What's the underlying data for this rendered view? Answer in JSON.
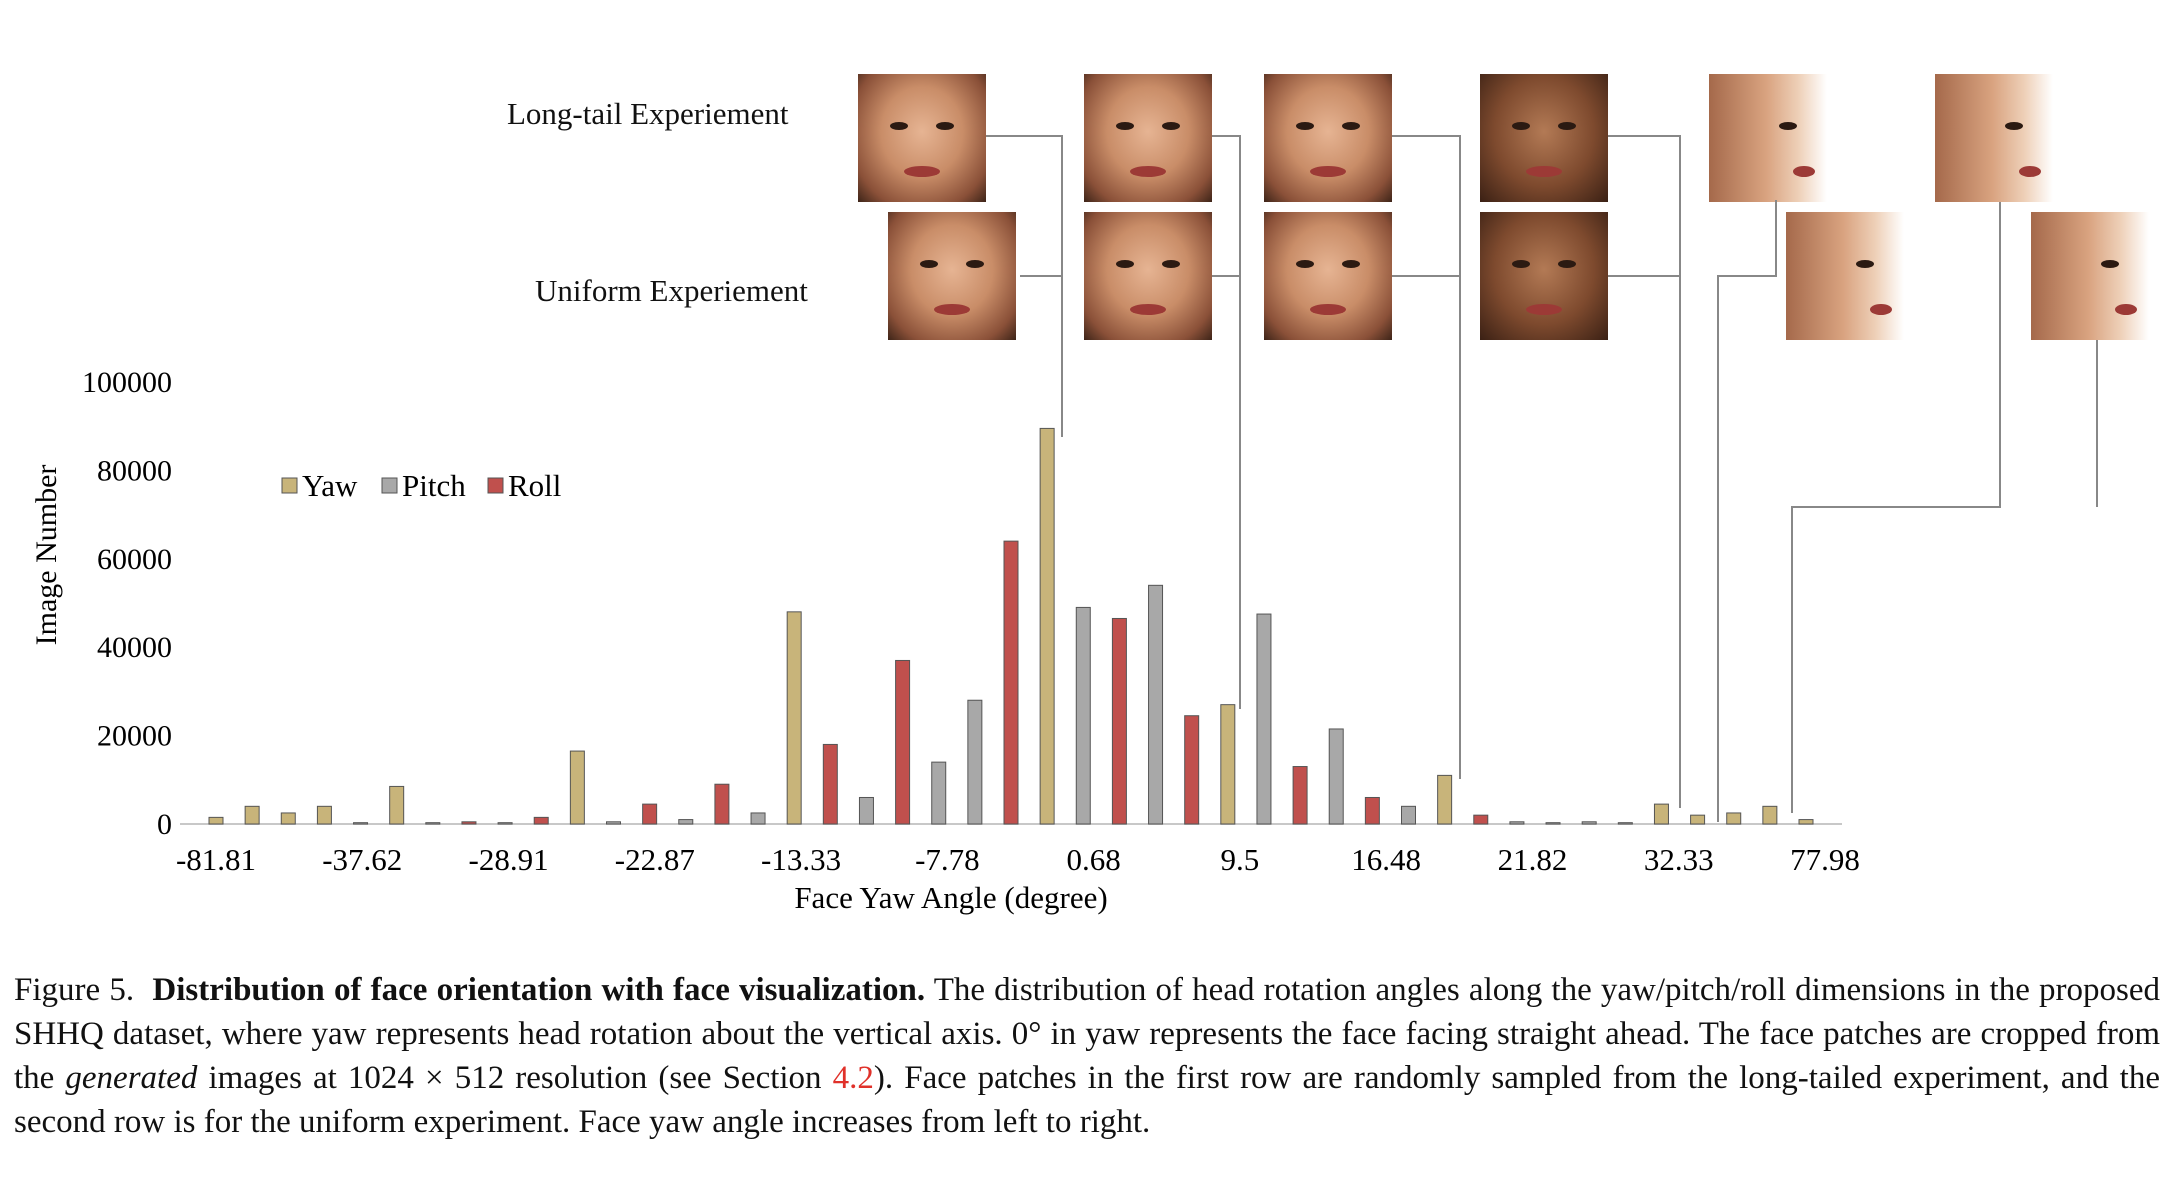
{
  "row_labels": {
    "long_tail": "Long-tail Experiement",
    "uniform": "Uniform Experiement"
  },
  "chart_data": {
    "type": "bar",
    "ylabel": "Image Number",
    "xlabel": "Face Yaw Angle (degree)",
    "ylim": [
      0,
      100000
    ],
    "y_ticks": [
      0,
      20000,
      40000,
      60000,
      80000,
      100000
    ],
    "x_tick_labels": [
      "-81.81",
      "-37.62",
      "-28.91",
      "-22.87",
      "-13.33",
      "-7.78",
      "0.68",
      "9.5",
      "16.48",
      "21.82",
      "32.33",
      "77.98"
    ],
    "legend": {
      "placement": "top-left",
      "items": [
        "Yaw",
        "Pitch",
        "Roll"
      ]
    },
    "colors": {
      "Yaw": "#c8b47a",
      "Pitch": "#a8a8a8",
      "Roll": "#c0504d"
    },
    "bars": [
      {
        "series": "Yaw",
        "value": 1500
      },
      {
        "series": "Yaw",
        "value": 4000
      },
      {
        "series": "Yaw",
        "value": 2500
      },
      {
        "series": "Yaw",
        "value": 4000
      },
      {
        "series": "Pitch",
        "value": 300
      },
      {
        "series": "Yaw",
        "value": 8500
      },
      {
        "series": "Pitch",
        "value": 300
      },
      {
        "series": "Roll",
        "value": 500
      },
      {
        "series": "Pitch",
        "value": 300
      },
      {
        "series": "Roll",
        "value": 1500
      },
      {
        "series": "Yaw",
        "value": 16500
      },
      {
        "series": "Pitch",
        "value": 500
      },
      {
        "series": "Roll",
        "value": 4500
      },
      {
        "series": "Pitch",
        "value": 1000
      },
      {
        "series": "Roll",
        "value": 9000
      },
      {
        "series": "Pitch",
        "value": 2500
      },
      {
        "series": "Yaw",
        "value": 48000
      },
      {
        "series": "Roll",
        "value": 18000
      },
      {
        "series": "Pitch",
        "value": 6000
      },
      {
        "series": "Roll",
        "value": 37000
      },
      {
        "series": "Pitch",
        "value": 14000
      },
      {
        "series": "Pitch",
        "value": 28000
      },
      {
        "series": "Roll",
        "value": 64000
      },
      {
        "series": "Yaw",
        "value": 89500
      },
      {
        "series": "Pitch",
        "value": 49000
      },
      {
        "series": "Roll",
        "value": 46500
      },
      {
        "series": "Pitch",
        "value": 54000
      },
      {
        "series": "Roll",
        "value": 24500
      },
      {
        "series": "Yaw",
        "value": 27000
      },
      {
        "series": "Pitch",
        "value": 47500
      },
      {
        "series": "Roll",
        "value": 13000
      },
      {
        "series": "Pitch",
        "value": 21500
      },
      {
        "series": "Roll",
        "value": 6000
      },
      {
        "series": "Pitch",
        "value": 4000
      },
      {
        "series": "Yaw",
        "value": 11000
      },
      {
        "series": "Roll",
        "value": 2000
      },
      {
        "series": "Pitch",
        "value": 500
      },
      {
        "series": "Pitch",
        "value": 300
      },
      {
        "series": "Pitch",
        "value": 500
      },
      {
        "series": "Pitch",
        "value": 300
      },
      {
        "series": "Yaw",
        "value": 4500
      },
      {
        "series": "Yaw",
        "value": 2000
      },
      {
        "series": "Yaw",
        "value": 2500
      },
      {
        "series": "Yaw",
        "value": 4000
      },
      {
        "series": "Yaw",
        "value": 1000
      }
    ]
  },
  "caption": {
    "prefix": "Figure 5.",
    "bold": "Distribution of face orientation with face visualization.",
    "part1": " The distribution of head rotation angles along the yaw/pitch/roll dimensions in the proposed SHHQ dataset, where yaw represents head rotation about the vertical axis. 0° in yaw represents the face facing straight ahead. The face patches are cropped from the ",
    "emph": "generated",
    "part2": " images at 1024 × 512 resolution (see Section ",
    "ref": "4.2",
    "part3": "). Face patches in the first row are randomly sampled from the long-tailed experiment, and the second row is for the uniform experiment. Face yaw angle increases from left to right."
  }
}
